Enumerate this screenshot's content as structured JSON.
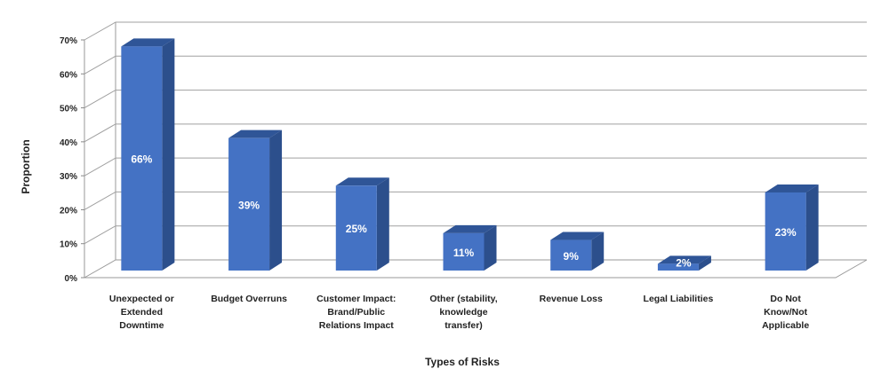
{
  "chart_data": {
    "type": "bar",
    "title": "",
    "xlabel": "Types of Risks",
    "ylabel": "Proportion",
    "categories": [
      "Unexpected or Extended Downtime",
      "Budget Overruns",
      "Customer Impact: Brand/Public Relations Impact",
      "Other (stability, knowledge transfer)",
      "Revenue Loss",
      "Legal Liabilities",
      "Do Not Know/Not Applicable"
    ],
    "category_lines": [
      [
        "Unexpected or",
        "Extended",
        "Downtime"
      ],
      [
        "Budget Overruns"
      ],
      [
        "Customer Impact:",
        "Brand/Public",
        "Relations Impact"
      ],
      [
        "Other (stability,",
        "knowledge",
        "transfer)"
      ],
      [
        "Revenue Loss"
      ],
      [
        "Legal Liabilities"
      ],
      [
        "Do Not",
        "Know/Not",
        "Applicable"
      ]
    ],
    "values": [
      66,
      39,
      25,
      11,
      9,
      2,
      23
    ],
    "data_labels": [
      "66%",
      "39%",
      "25%",
      "11%",
      "9%",
      "2%",
      "23%"
    ],
    "ylim": [
      0,
      70
    ],
    "yticks": [
      0,
      10,
      20,
      30,
      40,
      50,
      60,
      70
    ],
    "ytick_labels": [
      "0%",
      "10%",
      "20%",
      "30%",
      "40%",
      "50%",
      "60%",
      "70%"
    ],
    "grid": true,
    "three_d": true,
    "colors": {
      "bar_front": "#4472c4",
      "bar_side": "#2c4f8c",
      "bar_top": "#2f5597"
    }
  }
}
